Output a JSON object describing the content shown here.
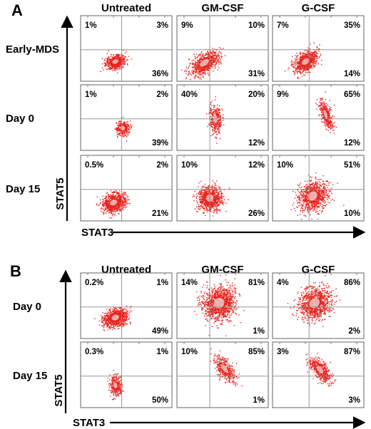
{
  "chart_data": [
    {
      "type": "scatter",
      "panel": "A",
      "columns": [
        "Untreated",
        "GM-CSF",
        "G-CSF"
      ],
      "rows": [
        "Early-MDS",
        "Day 0",
        "Day 15"
      ],
      "xlabel": "STAT3",
      "ylabel": "STAT5",
      "quadrant_percentages": [
        [
          {
            "ul": "1%",
            "ur": "3%",
            "lr": "36%"
          },
          {
            "ul": "9%",
            "ur": "10%",
            "lr": "31%"
          },
          {
            "ul": "7%",
            "ur": "35%",
            "lr": "14%"
          }
        ],
        [
          {
            "ul": "1%",
            "ur": "2%",
            "lr": "39%"
          },
          {
            "ul": "40%",
            "ur": "20%",
            "lr": "12%"
          },
          {
            "ul": "9%",
            "ur": "65%",
            "lr": "12%"
          }
        ],
        [
          {
            "ul": "0.5%",
            "ur": "2%",
            "lr": "21%"
          },
          {
            "ul": "10%",
            "ur": "12%",
            "lr": "26%"
          },
          {
            "ul": "10%",
            "ur": "51%",
            "lr": "10%"
          }
        ]
      ]
    },
    {
      "type": "scatter",
      "panel": "B",
      "columns": [
        "Untreated",
        "GM-CSF",
        "G-CSF"
      ],
      "rows": [
        "Day 0",
        "Day 15"
      ],
      "xlabel": "STAT3",
      "ylabel": "STAT5",
      "quadrant_percentages": [
        [
          {
            "ul": "0.2%",
            "ur": "1%",
            "lr": "49%"
          },
          {
            "ul": "14%",
            "ur": "81%",
            "lr": "1%"
          },
          {
            "ul": "4%",
            "ur": "86%",
            "lr": "2%"
          }
        ],
        [
          {
            "ul": "0.3%",
            "ur": "1%",
            "lr": "50%"
          },
          {
            "ul": "10%",
            "ur": "85%",
            "lr": "1%"
          },
          {
            "ul": "3%",
            "ur": "87%",
            "lr": "3%"
          }
        ]
      ]
    }
  ],
  "colors": {
    "dots": "#e8231e",
    "core": "#f3dada",
    "frame": "#666666",
    "gate": "#8a8a8a",
    "text": "#000000"
  }
}
